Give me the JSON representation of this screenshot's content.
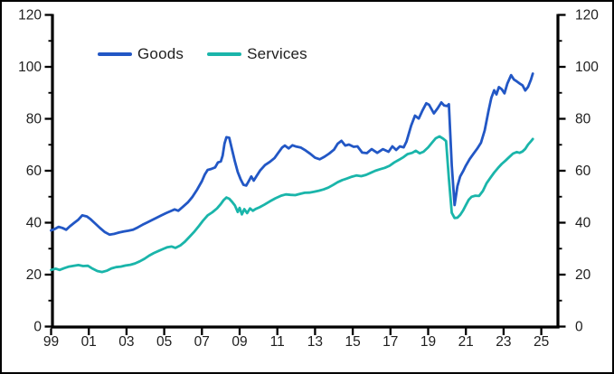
{
  "chart_data": {
    "type": "line",
    "title": "",
    "xlabel": "",
    "ylabel": "",
    "x_axis": {
      "tick_labels": [
        "99",
        "01",
        "03",
        "05",
        "07",
        "09",
        "11",
        "13",
        "15",
        "17",
        "19",
        "21",
        "23",
        "25"
      ],
      "tick_years": [
        1999,
        2001,
        2003,
        2005,
        2007,
        2009,
        2011,
        2013,
        2015,
        2017,
        2019,
        2021,
        2023,
        2025
      ],
      "range_years": [
        1999,
        2025.9
      ]
    },
    "y_axis_left": {
      "tick_values": [
        0,
        20,
        40,
        60,
        80,
        100,
        120
      ],
      "minor_tick_values": [
        10,
        30,
        50,
        70,
        90,
        110
      ],
      "range": [
        0,
        120
      ]
    },
    "y_axis_right": {
      "tick_values": [
        0,
        20,
        40,
        60,
        80,
        100,
        120
      ],
      "minor_tick_values": [
        10,
        30,
        50,
        70,
        90,
        110
      ],
      "range": [
        0,
        120
      ]
    },
    "grid": "off",
    "legend_position": "top-left-inside",
    "axis_color": "#000000",
    "series": [
      {
        "name": "Goods",
        "color": "#2257c5",
        "points": [
          [
            1999.0,
            37.0
          ],
          [
            1999.2,
            37.6
          ],
          [
            1999.4,
            38.4
          ],
          [
            1999.6,
            38.0
          ],
          [
            1999.8,
            37.3
          ],
          [
            2000.0,
            38.6
          ],
          [
            2000.2,
            39.8
          ],
          [
            2000.45,
            41.2
          ],
          [
            2000.65,
            42.8
          ],
          [
            2000.9,
            42.4
          ],
          [
            2001.1,
            41.3
          ],
          [
            2001.35,
            39.6
          ],
          [
            2001.6,
            37.9
          ],
          [
            2001.85,
            36.4
          ],
          [
            2002.1,
            35.4
          ],
          [
            2002.35,
            35.7
          ],
          [
            2002.6,
            36.2
          ],
          [
            2002.85,
            36.6
          ],
          [
            2003.1,
            36.9
          ],
          [
            2003.35,
            37.3
          ],
          [
            2003.6,
            38.2
          ],
          [
            2003.85,
            39.2
          ],
          [
            2004.1,
            40.1
          ],
          [
            2004.35,
            41.0
          ],
          [
            2004.6,
            41.9
          ],
          [
            2004.85,
            42.8
          ],
          [
            2005.1,
            43.7
          ],
          [
            2005.35,
            44.5
          ],
          [
            2005.55,
            45.1
          ],
          [
            2005.75,
            44.6
          ],
          [
            2006.0,
            46.2
          ],
          [
            2006.25,
            47.8
          ],
          [
            2006.5,
            50.0
          ],
          [
            2006.75,
            52.8
          ],
          [
            2007.0,
            56.0
          ],
          [
            2007.15,
            58.5
          ],
          [
            2007.3,
            60.3
          ],
          [
            2007.5,
            60.7
          ],
          [
            2007.7,
            61.3
          ],
          [
            2007.85,
            63.2
          ],
          [
            2008.0,
            63.6
          ],
          [
            2008.1,
            65.8
          ],
          [
            2008.2,
            70.5
          ],
          [
            2008.3,
            72.9
          ],
          [
            2008.45,
            72.7
          ],
          [
            2008.6,
            68.0
          ],
          [
            2008.75,
            63.5
          ],
          [
            2008.9,
            59.5
          ],
          [
            2009.05,
            56.8
          ],
          [
            2009.2,
            54.6
          ],
          [
            2009.35,
            54.3
          ],
          [
            2009.5,
            56.2
          ],
          [
            2009.62,
            57.8
          ],
          [
            2009.75,
            56.2
          ],
          [
            2009.9,
            58.0
          ],
          [
            2010.1,
            60.2
          ],
          [
            2010.35,
            62.2
          ],
          [
            2010.6,
            63.4
          ],
          [
            2010.85,
            64.9
          ],
          [
            2011.05,
            66.9
          ],
          [
            2011.25,
            68.9
          ],
          [
            2011.4,
            69.7
          ],
          [
            2011.6,
            68.6
          ],
          [
            2011.8,
            69.8
          ],
          [
            2012.0,
            69.3
          ],
          [
            2012.25,
            68.9
          ],
          [
            2012.5,
            67.8
          ],
          [
            2012.75,
            66.5
          ],
          [
            2013.0,
            65.0
          ],
          [
            2013.25,
            64.4
          ],
          [
            2013.5,
            65.4
          ],
          [
            2013.75,
            66.6
          ],
          [
            2014.0,
            68.1
          ],
          [
            2014.2,
            70.4
          ],
          [
            2014.4,
            71.5
          ],
          [
            2014.6,
            69.7
          ],
          [
            2014.8,
            70.1
          ],
          [
            2015.05,
            69.2
          ],
          [
            2015.25,
            69.4
          ],
          [
            2015.5,
            67.0
          ],
          [
            2015.75,
            66.8
          ],
          [
            2016.0,
            68.3
          ],
          [
            2016.3,
            66.9
          ],
          [
            2016.6,
            68.3
          ],
          [
            2016.9,
            67.3
          ],
          [
            2017.1,
            69.4
          ],
          [
            2017.3,
            68.0
          ],
          [
            2017.5,
            69.4
          ],
          [
            2017.7,
            69.0
          ],
          [
            2017.85,
            71.2
          ],
          [
            2018.1,
            77.4
          ],
          [
            2018.3,
            81.2
          ],
          [
            2018.5,
            80.1
          ],
          [
            2018.7,
            83.2
          ],
          [
            2018.9,
            86.0
          ],
          [
            2019.05,
            85.4
          ],
          [
            2019.3,
            82.1
          ],
          [
            2019.5,
            84.0
          ],
          [
            2019.7,
            86.3
          ],
          [
            2019.85,
            85.1
          ],
          [
            2020.0,
            84.9
          ],
          [
            2020.1,
            85.6
          ],
          [
            2020.25,
            62.0
          ],
          [
            2020.4,
            46.8
          ],
          [
            2020.55,
            54.0
          ],
          [
            2020.7,
            57.8
          ],
          [
            2020.85,
            59.8
          ],
          [
            2021.0,
            62.0
          ],
          [
            2021.2,
            64.5
          ],
          [
            2021.4,
            66.5
          ],
          [
            2021.6,
            68.5
          ],
          [
            2021.8,
            70.8
          ],
          [
            2022.0,
            75.5
          ],
          [
            2022.2,
            83.0
          ],
          [
            2022.35,
            88.0
          ],
          [
            2022.5,
            91.0
          ],
          [
            2022.62,
            89.4
          ],
          [
            2022.75,
            92.2
          ],
          [
            2022.9,
            91.4
          ],
          [
            2023.05,
            89.8
          ],
          [
            2023.2,
            93.6
          ],
          [
            2023.4,
            96.8
          ],
          [
            2023.55,
            95.1
          ],
          [
            2023.7,
            94.4
          ],
          [
            2023.85,
            93.6
          ],
          [
            2024.0,
            92.9
          ],
          [
            2024.15,
            90.9
          ],
          [
            2024.3,
            92.3
          ],
          [
            2024.45,
            95.0
          ],
          [
            2024.55,
            97.4
          ]
        ]
      },
      {
        "name": "Services",
        "color": "#1ab5aa",
        "points": [
          [
            1999.0,
            21.8
          ],
          [
            1999.25,
            22.3
          ],
          [
            1999.45,
            21.8
          ],
          [
            1999.7,
            22.5
          ],
          [
            1999.95,
            23.1
          ],
          [
            2000.2,
            23.4
          ],
          [
            2000.45,
            23.7
          ],
          [
            2000.7,
            23.3
          ],
          [
            2000.95,
            23.4
          ],
          [
            2001.2,
            22.3
          ],
          [
            2001.45,
            21.4
          ],
          [
            2001.7,
            21.0
          ],
          [
            2001.95,
            21.5
          ],
          [
            2002.2,
            22.4
          ],
          [
            2002.45,
            22.9
          ],
          [
            2002.7,
            23.1
          ],
          [
            2002.95,
            23.5
          ],
          [
            2003.2,
            23.8
          ],
          [
            2003.45,
            24.3
          ],
          [
            2003.7,
            25.1
          ],
          [
            2003.95,
            26.1
          ],
          [
            2004.2,
            27.3
          ],
          [
            2004.45,
            28.3
          ],
          [
            2004.7,
            29.1
          ],
          [
            2004.95,
            29.9
          ],
          [
            2005.15,
            30.5
          ],
          [
            2005.4,
            30.8
          ],
          [
            2005.6,
            30.3
          ],
          [
            2005.85,
            31.2
          ],
          [
            2006.1,
            32.7
          ],
          [
            2006.35,
            34.6
          ],
          [
            2006.6,
            36.6
          ],
          [
            2006.85,
            38.8
          ],
          [
            2007.05,
            40.7
          ],
          [
            2007.3,
            42.8
          ],
          [
            2007.55,
            44.0
          ],
          [
            2007.8,
            45.5
          ],
          [
            2008.0,
            47.2
          ],
          [
            2008.15,
            48.7
          ],
          [
            2008.3,
            49.7
          ],
          [
            2008.45,
            49.2
          ],
          [
            2008.6,
            48.0
          ],
          [
            2008.75,
            46.6
          ],
          [
            2008.9,
            44.1
          ],
          [
            2009.0,
            45.7
          ],
          [
            2009.12,
            43.2
          ],
          [
            2009.25,
            45.2
          ],
          [
            2009.4,
            43.7
          ],
          [
            2009.55,
            45.5
          ],
          [
            2009.7,
            44.6
          ],
          [
            2009.85,
            45.3
          ],
          [
            2010.05,
            45.9
          ],
          [
            2010.3,
            46.9
          ],
          [
            2010.6,
            48.2
          ],
          [
            2010.9,
            49.4
          ],
          [
            2011.2,
            50.4
          ],
          [
            2011.45,
            50.9
          ],
          [
            2011.7,
            50.7
          ],
          [
            2011.95,
            50.6
          ],
          [
            2012.2,
            51.1
          ],
          [
            2012.45,
            51.5
          ],
          [
            2012.7,
            51.6
          ],
          [
            2012.95,
            51.9
          ],
          [
            2013.2,
            52.3
          ],
          [
            2013.45,
            52.8
          ],
          [
            2013.7,
            53.5
          ],
          [
            2013.95,
            54.5
          ],
          [
            2014.2,
            55.6
          ],
          [
            2014.45,
            56.4
          ],
          [
            2014.7,
            57.0
          ],
          [
            2014.95,
            57.7
          ],
          [
            2015.2,
            58.2
          ],
          [
            2015.45,
            57.9
          ],
          [
            2015.7,
            58.4
          ],
          [
            2015.95,
            59.2
          ],
          [
            2016.2,
            60.0
          ],
          [
            2016.45,
            60.6
          ],
          [
            2016.7,
            61.1
          ],
          [
            2016.95,
            61.9
          ],
          [
            2017.2,
            63.2
          ],
          [
            2017.45,
            64.2
          ],
          [
            2017.7,
            65.3
          ],
          [
            2017.9,
            66.4
          ],
          [
            2018.15,
            66.9
          ],
          [
            2018.35,
            67.7
          ],
          [
            2018.55,
            66.7
          ],
          [
            2018.75,
            67.3
          ],
          [
            2019.0,
            69.0
          ],
          [
            2019.2,
            70.8
          ],
          [
            2019.4,
            72.5
          ],
          [
            2019.6,
            73.2
          ],
          [
            2019.8,
            72.3
          ],
          [
            2019.95,
            71.4
          ],
          [
            2020.1,
            57.0
          ],
          [
            2020.25,
            43.8
          ],
          [
            2020.4,
            41.8
          ],
          [
            2020.55,
            41.9
          ],
          [
            2020.7,
            43.0
          ],
          [
            2020.85,
            44.7
          ],
          [
            2021.0,
            46.8
          ],
          [
            2021.15,
            48.8
          ],
          [
            2021.3,
            50.0
          ],
          [
            2021.5,
            50.4
          ],
          [
            2021.7,
            50.3
          ],
          [
            2021.9,
            52.2
          ],
          [
            2022.1,
            55.2
          ],
          [
            2022.3,
            57.3
          ],
          [
            2022.5,
            59.3
          ],
          [
            2022.7,
            61.0
          ],
          [
            2022.9,
            62.6
          ],
          [
            2023.1,
            63.9
          ],
          [
            2023.3,
            65.3
          ],
          [
            2023.5,
            66.6
          ],
          [
            2023.7,
            67.2
          ],
          [
            2023.85,
            66.9
          ],
          [
            2024.0,
            67.4
          ],
          [
            2024.15,
            68.4
          ],
          [
            2024.3,
            70.1
          ],
          [
            2024.45,
            71.3
          ],
          [
            2024.55,
            72.2
          ]
        ]
      }
    ]
  }
}
